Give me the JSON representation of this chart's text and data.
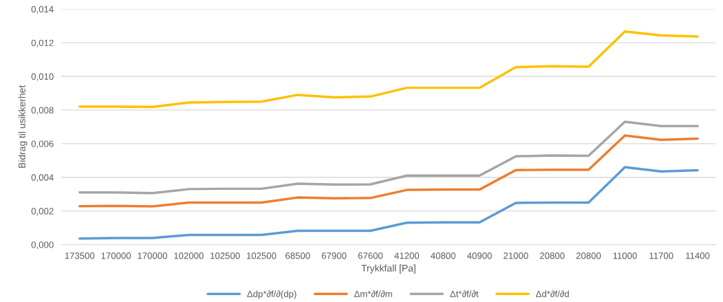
{
  "chart_data": {
    "type": "line",
    "xlabel": "Trykkfall [Pa]",
    "ylabel": "Bidrag til usikkerhet",
    "categories": [
      "173500",
      "170000",
      "170000",
      "102000",
      "102500",
      "102500",
      "68500",
      "67900",
      "67600",
      "41200",
      "40800",
      "40900",
      "21000",
      "20800",
      "20800",
      "11000",
      "11700",
      "11400"
    ],
    "series": [
      {
        "name": "Δdp*∂f/∂(dp)",
        "color": "#5b9bd5",
        "values": [
          0.00036,
          0.00039,
          0.00039,
          0.00058,
          0.00058,
          0.00058,
          0.00082,
          0.00082,
          0.00082,
          0.0013,
          0.00132,
          0.00132,
          0.00248,
          0.0025,
          0.0025,
          0.0046,
          0.00435,
          0.00442
        ]
      },
      {
        "name": "Δm*∂f/∂m",
        "color": "#ed7d31",
        "values": [
          0.00228,
          0.0023,
          0.00227,
          0.0025,
          0.0025,
          0.0025,
          0.0028,
          0.00275,
          0.00277,
          0.00325,
          0.00327,
          0.00327,
          0.00443,
          0.00445,
          0.00445,
          0.00648,
          0.00623,
          0.0063
        ]
      },
      {
        "name": "Δt*∂f/∂t",
        "color": "#a5a5a5",
        "values": [
          0.0031,
          0.0031,
          0.00306,
          0.0033,
          0.00332,
          0.00332,
          0.00362,
          0.00357,
          0.00358,
          0.0041,
          0.0041,
          0.0041,
          0.00525,
          0.0053,
          0.00528,
          0.0073,
          0.00705,
          0.00705
        ]
      },
      {
        "name": "Δd*∂f/∂d",
        "color": "#ffc000",
        "values": [
          0.0082,
          0.0082,
          0.00818,
          0.00845,
          0.00848,
          0.0085,
          0.0089,
          0.00875,
          0.0088,
          0.00932,
          0.00932,
          0.00932,
          0.01055,
          0.0106,
          0.01057,
          0.01267,
          0.01243,
          0.01237
        ]
      }
    ],
    "ylim": [
      0,
      0.014
    ],
    "yticks": [
      {
        "value": 0,
        "label": "0,000"
      },
      {
        "value": 0.002,
        "label": "0,002"
      },
      {
        "value": 0.004,
        "label": "0,004"
      },
      {
        "value": 0.006,
        "label": "0,006"
      },
      {
        "value": 0.008,
        "label": "0,008"
      },
      {
        "value": 0.01,
        "label": "0,010"
      },
      {
        "value": 0.012,
        "label": "0,012"
      },
      {
        "value": 0.014,
        "label": "0,014"
      }
    ],
    "grid": "y",
    "legend": "bottom",
    "marker": "none",
    "line_style": "solid"
  }
}
